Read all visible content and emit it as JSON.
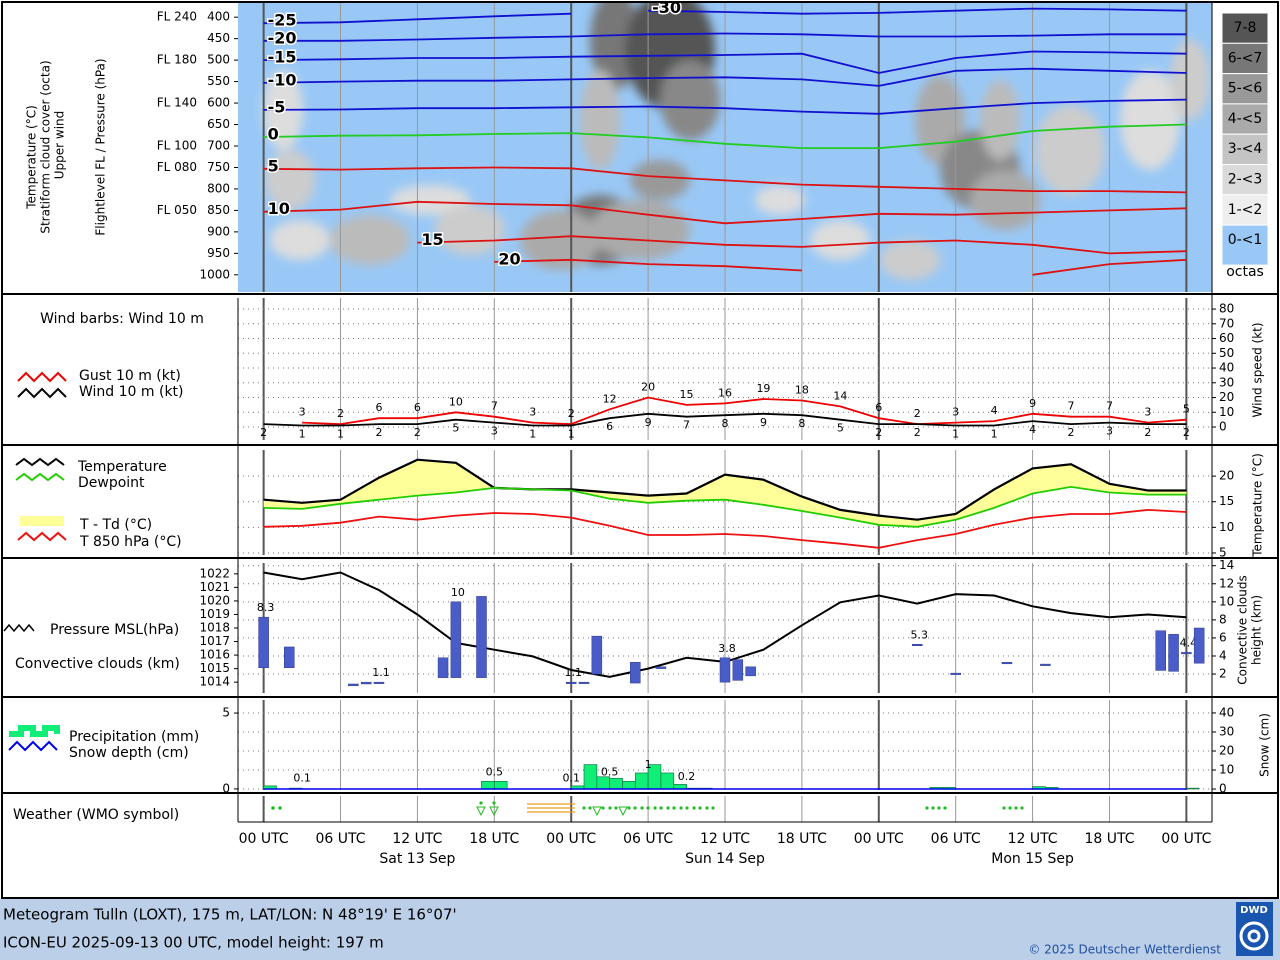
{
  "chart_data": [
    {
      "type": "contour",
      "y_labels": [
        "Temperature (°C)",
        "Stratiform cloud cover (octa)",
        "Upper wind"
      ],
      "y_label": "Flightlevel FL / Pressure (hPa)",
      "xlim": [
        -2,
        74
      ],
      "ylim": [
        1040,
        367
      ],
      "yticks": [
        400,
        450,
        500,
        550,
        600,
        650,
        700,
        750,
        800,
        850,
        900,
        950,
        1000
      ],
      "fl_ticks": [
        {
          "value": 400,
          "label": "FL 240"
        },
        {
          "value": 500,
          "label": "FL 180"
        },
        {
          "value": 600,
          "label": "FL 140"
        },
        {
          "value": 700,
          "label": "FL 100"
        },
        {
          "value": 750,
          "label": "FL 080"
        },
        {
          "value": 850,
          "label": "FL 050"
        }
      ],
      "x": [
        0,
        6,
        12,
        18,
        24,
        30,
        36,
        42,
        48,
        54,
        60,
        66,
        72
      ],
      "series": [
        {
          "name": "-30",
          "color": "#1010d0",
          "values": [
            null,
            null,
            null,
            null,
            null,
            385,
            388,
            392,
            390,
            385,
            380,
            382,
            385
          ]
        },
        {
          "name": "-25",
          "color": "#1010d0",
          "values": [
            414,
            412,
            405,
            398,
            392,
            null,
            null,
            null,
            null,
            null,
            null,
            null,
            null
          ]
        },
        {
          "name": "-20",
          "color": "#1010d0",
          "values": [
            455,
            455,
            452,
            448,
            445,
            440,
            438,
            440,
            445,
            445,
            443,
            440,
            440
          ]
        },
        {
          "name": "-15",
          "color": "#1010d0",
          "values": [
            500,
            498,
            495,
            495,
            492,
            490,
            488,
            485,
            530,
            495,
            480,
            482,
            485
          ]
        },
        {
          "name": "-10",
          "color": "#1010d0",
          "values": [
            553,
            550,
            548,
            548,
            545,
            542,
            540,
            545,
            560,
            525,
            520,
            525,
            530
          ]
        },
        {
          "name": "-5",
          "color": "#1010d0",
          "values": [
            616,
            615,
            612,
            612,
            610,
            608,
            612,
            620,
            625,
            612,
            600,
            595,
            592
          ]
        },
        {
          "name": "0",
          "color": "#22cc22",
          "values": [
            679,
            676,
            675,
            672,
            670,
            680,
            695,
            705,
            705,
            690,
            665,
            655,
            650
          ]
        },
        {
          "name": "5",
          "color": "#dd1111",
          "values": [
            753,
            755,
            752,
            750,
            752,
            770,
            780,
            790,
            795,
            800,
            805,
            805,
            808
          ]
        },
        {
          "name": "10",
          "color": "#dd1111",
          "values": [
            853,
            848,
            830,
            835,
            838,
            860,
            880,
            870,
            858,
            860,
            855,
            850,
            845
          ]
        },
        {
          "name": "15",
          "color": "#dd1111",
          "values": [
            null,
            null,
            925,
            920,
            910,
            920,
            930,
            935,
            925,
            920,
            930,
            950,
            945
          ]
        },
        {
          "name": "20",
          "color": "#dd1111",
          "values": [
            null,
            null,
            null,
            970,
            965,
            975,
            980,
            990,
            null,
            null,
            1000,
            975,
            965
          ]
        }
      ],
      "cloud_cover_legend": {
        "unit": "octas",
        "classes": [
          {
            "label": "7-8",
            "color": "#555555"
          },
          {
            "label": "6-<7",
            "color": "#777777"
          },
          {
            "label": "5-<6",
            "color": "#999999"
          },
          {
            "label": "4-<5",
            "color": "#aaaaaa"
          },
          {
            "label": "3-<4",
            "color": "#c4c4c4"
          },
          {
            "label": "2-<3",
            "color": "#dadada"
          },
          {
            "label": "1-<2",
            "color": "#eeeeee"
          },
          {
            "label": "0-<1",
            "color": "#99c8f6"
          }
        ]
      }
    },
    {
      "type": "line",
      "title": "Wind barbs: Wind 10 m",
      "xlim": [
        -2,
        74
      ],
      "y2lim": [
        -8.8,
        87.5
      ],
      "y2ticks": [
        0,
        10,
        20,
        30,
        40,
        50,
        60,
        70,
        80
      ],
      "y2_label": "Wind speed (kt)",
      "grid": true,
      "series": [
        {
          "name": "Gust 10 m (kt)",
          "color": "#ee0000",
          "axis": "y2",
          "label_position": "above",
          "x": [
            3,
            6,
            9,
            12,
            15,
            18,
            21,
            24,
            27,
            30,
            33,
            36,
            39,
            42,
            45,
            48,
            51,
            54,
            57,
            60,
            63,
            66,
            69,
            72
          ],
          "values": [
            3,
            2,
            6,
            6,
            10,
            7,
            3,
            2,
            12,
            20,
            15,
            16,
            19,
            18,
            14,
            6,
            2,
            3,
            4,
            9,
            7,
            7,
            3,
            5
          ]
        },
        {
          "name": "Wind 10 m (kt)",
          "color": "#000000",
          "axis": "y2",
          "label_position": "below",
          "x": [
            0,
            3,
            6,
            9,
            12,
            15,
            18,
            21,
            24,
            27,
            30,
            33,
            36,
            39,
            42,
            45,
            48,
            51,
            54,
            57,
            60,
            63,
            66,
            69,
            72
          ],
          "values": [
            2,
            1,
            1,
            2,
            2,
            5,
            3,
            1,
            1,
            6,
            9,
            7,
            8,
            9,
            8,
            5,
            2,
            2,
            1,
            1,
            4,
            2,
            3,
            2,
            2
          ]
        }
      ]
    },
    {
      "type": "line",
      "xlim": [
        -2,
        74
      ],
      "y2lim": [
        4.6,
        25.1
      ],
      "y2ticks": [
        5,
        10,
        15,
        20
      ],
      "y2_label": "Temperature (°C)",
      "grid": true,
      "series": [
        {
          "name": "Temperature",
          "color": "#000000",
          "axis": "y2",
          "x": [
            0,
            3,
            6,
            9,
            12,
            15,
            18,
            21,
            24,
            27,
            30,
            33,
            36,
            39,
            42,
            45,
            48,
            51,
            54,
            57,
            60,
            63,
            66,
            69,
            72
          ],
          "values": [
            15.4,
            14.8,
            15.4,
            19.7,
            23.2,
            22.6,
            17.7,
            17.4,
            17.4,
            16.8,
            16.2,
            16.6,
            20.3,
            19.3,
            16.0,
            13.4,
            12.3,
            11.5,
            12.6,
            17.4,
            21.5,
            22.3,
            18.5,
            17.2,
            17.2
          ]
        },
        {
          "name": "Dewpoint",
          "color": "#22cc00",
          "axis": "y2",
          "x": [
            0,
            3,
            6,
            9,
            12,
            15,
            18,
            21,
            24,
            27,
            30,
            33,
            36,
            39,
            42,
            45,
            48,
            51,
            54,
            57,
            60,
            63,
            66,
            69,
            72
          ],
          "values": [
            13.8,
            13.6,
            14.6,
            15.4,
            16.2,
            16.8,
            17.7,
            17.4,
            17.2,
            15.6,
            14.8,
            15.2,
            15.4,
            14.4,
            13.2,
            11.9,
            10.5,
            10.1,
            11.5,
            13.8,
            16.6,
            17.9,
            16.8,
            16.4,
            16.4
          ]
        },
        {
          "name": "T 850 hPa (°C)",
          "color": "#ee1111",
          "axis": "y2",
          "x": [
            0,
            3,
            6,
            9,
            12,
            15,
            18,
            21,
            24,
            27,
            30,
            33,
            36,
            39,
            42,
            45,
            48,
            51,
            54,
            57,
            60,
            63,
            66,
            69,
            72
          ],
          "values": [
            10.1,
            10.3,
            10.9,
            12.1,
            11.5,
            12.3,
            12.8,
            12.6,
            11.9,
            10.3,
            8.5,
            8.5,
            8.7,
            8.3,
            7.5,
            6.8,
            6.0,
            7.5,
            8.7,
            10.5,
            11.9,
            12.6,
            12.6,
            13.4,
            13.0
          ]
        }
      ],
      "fill": {
        "name": "T - Td (°C)",
        "color": "#ffff99"
      }
    },
    {
      "type": "combo",
      "xlim": [
        -2,
        74
      ],
      "ylim": [
        1013.2,
        1022.8
      ],
      "yticks": [
        1014,
        1015,
        1016,
        1017,
        1018,
        1019,
        1020,
        1021,
        1022
      ],
      "y2lim": [
        -0.1,
        14.3
      ],
      "y2ticks": [
        2,
        4,
        6,
        8,
        10,
        12,
        14
      ],
      "y2_label": [
        "Convective clouds",
        "height (km)"
      ],
      "grid": true,
      "series": [
        {
          "name": "Pressure MSL(hPa)",
          "type": "line",
          "color": "#000000",
          "x": [
            0,
            3,
            6,
            9,
            12,
            15,
            18,
            21,
            24,
            27,
            30,
            33,
            36,
            39,
            42,
            45,
            48,
            51,
            54,
            57,
            60,
            63,
            66,
            69,
            72
          ],
          "values": [
            1022.1,
            1021.6,
            1022.1,
            1020.8,
            1019.0,
            1016.9,
            1016.4,
            1015.9,
            1014.9,
            1014.4,
            1015.0,
            1015.8,
            1015.5,
            1016.4,
            1018.2,
            1019.9,
            1020.4,
            1019.8,
            1020.5,
            1020.4,
            1019.6,
            1019.1,
            1018.8,
            1019.0,
            1018.8
          ]
        },
        {
          "name": "Convective clouds (km)",
          "type": "floating_bar",
          "color": "#4a5cc8",
          "axis": "y2",
          "x": [
            0,
            2,
            7,
            8,
            9,
            14,
            15,
            17,
            24,
            25,
            26,
            29,
            31,
            36,
            37,
            38,
            51,
            54,
            58,
            61,
            70,
            71,
            72,
            73
          ],
          "base": [
            2.7,
            2.7,
            0.7,
            0.9,
            1.0,
            1.6,
            1.6,
            1.6,
            1.0,
            1.0,
            2.0,
            1.0,
            2.6,
            1.1,
            1.3,
            1.8,
            5.2,
            2.0,
            3.2,
            3.0,
            2.4,
            2.3,
            4.3,
            3.2
          ],
          "values": [
            8.3,
            5.0,
            0.9,
            1.1,
            1.1,
            3.8,
            10,
            10.6,
            1.1,
            1.1,
            6.2,
            3.3,
            2.8,
            3.8,
            3.6,
            2.8,
            5.3,
            2.1,
            3.3,
            3.1,
            6.8,
            6.4,
            4.4,
            7.1
          ],
          "value_labels": [
            "8.3",
            null,
            null,
            null,
            "1.1",
            null,
            "10",
            null,
            "1.1",
            null,
            null,
            null,
            null,
            "3.8",
            null,
            null,
            "5.3",
            null,
            null,
            null,
            null,
            null,
            "4.4",
            null
          ]
        }
      ]
    },
    {
      "type": "bar",
      "xlim": [
        -2,
        74
      ],
      "ylim": [
        -0.07,
        5.86
      ],
      "yticks": [
        0,
        5
      ],
      "y2lim": [
        -0.5,
        46.8
      ],
      "y2ticks": [
        0,
        10,
        20,
        30,
        40
      ],
      "y2_label": "Snow (cm)",
      "grid": true,
      "series": [
        {
          "name": "Precipitation (mm)",
          "type": "bar",
          "color": "#11ee77",
          "x": [
            0.5,
            2.5,
            17.5,
            18.5,
            24.5,
            25.5,
            26.5,
            27.5,
            28.5,
            29.5,
            30.5,
            31.5,
            32.5,
            33.5,
            34.5,
            52.5,
            53.5,
            60.5,
            61.5,
            72.5
          ],
          "values": [
            0.2,
            0.05,
            0.5,
            0.5,
            0.2,
            1.6,
            0.8,
            0.7,
            0.5,
            1.05,
            1.6,
            1.05,
            0.3,
            0.05,
            0.05,
            0.1,
            0.1,
            0.15,
            0.1,
            0.05
          ]
        },
        {
          "name": "Snow depth (cm)",
          "type": "line",
          "color": "#0000ee",
          "axis": "y2",
          "x": [
            0,
            6,
            12,
            18,
            24,
            30,
            36,
            42,
            48,
            54,
            60,
            66,
            72
          ],
          "values": [
            0,
            0,
            0,
            0,
            0,
            0,
            0,
            0,
            0,
            0,
            0,
            0,
            0
          ]
        }
      ],
      "totals": {
        "x": [
          3,
          18,
          24,
          27,
          30,
          33
        ],
        "values": [
          0.1,
          0.5,
          0.1,
          0.5,
          1,
          0.2
        ]
      }
    },
    {
      "type": "symbols",
      "title": "Weather (WMO symbol)",
      "xlim": [
        -2,
        74
      ],
      "xticks": [
        {
          "value": 0,
          "label": "00 UTC"
        },
        {
          "value": 6,
          "label": "06 UTC"
        },
        {
          "value": 12,
          "label": "12 UTC"
        },
        {
          "value": 18,
          "label": "18 UTC"
        },
        {
          "value": 24,
          "label": "00 UTC"
        },
        {
          "value": 30,
          "label": "06 UTC"
        },
        {
          "value": 36,
          "label": "12 UTC"
        },
        {
          "value": 42,
          "label": "18 UTC"
        },
        {
          "value": 48,
          "label": "00 UTC"
        },
        {
          "value": 54,
          "label": "06 UTC"
        },
        {
          "value": 60,
          "label": "12 UTC"
        },
        {
          "value": 66,
          "label": "18 UTC"
        },
        {
          "value": 72,
          "label": "00 UTC"
        }
      ],
      "days": [
        {
          "value": 12,
          "label": "Sat 13 Sep"
        },
        {
          "value": 36,
          "label": "Sun 14 Sep"
        },
        {
          "value": 60,
          "label": "Mon 15 Sep"
        }
      ]
    }
  ],
  "footer": {
    "line1": "Meteogram Tulln (LOXT), 175 m, LAT/LON: N 48°19' E 16°07'",
    "line2": "ICON-EU 2025-09-13 00 UTC, model height: 197 m",
    "copyright": "© 2025 Deutscher Wetterdienst",
    "logo": "DWD"
  }
}
